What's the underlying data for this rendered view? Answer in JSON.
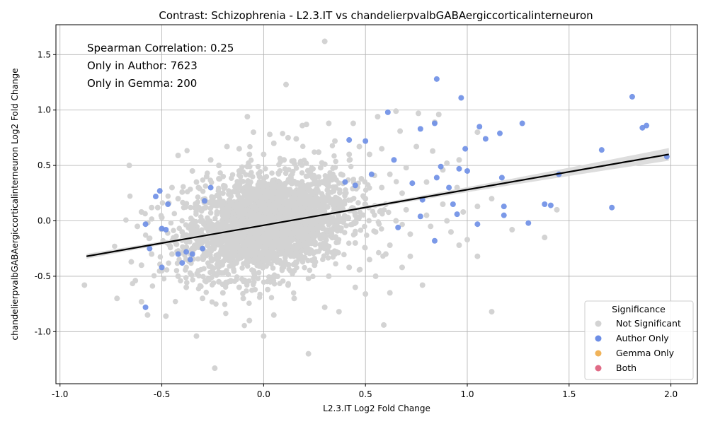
{
  "chart_data": {
    "type": "scatter",
    "title": "Contrast: Schizophrenia - L2.3.IT vs chandelierpvalbGABAergiccorticalinterneuron",
    "xlabel": "L2.3.IT Log2 Fold Change",
    "ylabel": "chandelierpvalbGABAergiccorticalinterneuron Log2 Fold Change",
    "xlim": [
      -1.02,
      2.13
    ],
    "ylim": [
      -1.47,
      1.77
    ],
    "x_ticks": [
      "-1.0",
      "-0.5",
      "0.0",
      "0.5",
      "1.0",
      "1.5",
      "2.0"
    ],
    "x_tick_values": [
      -1.0,
      -0.5,
      0.0,
      0.5,
      1.0,
      1.5,
      2.0
    ],
    "y_ticks": [
      "-1.0",
      "-0.5",
      "0.0",
      "0.5",
      "1.0",
      "1.5"
    ],
    "y_tick_values": [
      -1.0,
      -0.5,
      0.0,
      0.5,
      1.0,
      1.5
    ],
    "grid": true,
    "annotations": [
      "Spearman Correlation: 0.25",
      "Only in Author: 7623",
      "Only in Gemma: 200"
    ],
    "legend": {
      "title": "Significance",
      "placement": "lower-right",
      "entries": [
        {
          "label": "Not Significant",
          "color": "#d3d3d3"
        },
        {
          "label": "Author Only",
          "color": "#6d8ee6"
        },
        {
          "label": "Gemma Only",
          "color": "#f0b35a"
        },
        {
          "label": "Both",
          "color": "#e06b86"
        }
      ]
    },
    "regression_line": {
      "x": [
        -0.87,
        1.99
      ],
      "y": [
        -0.32,
        0.6
      ],
      "color": "#000000"
    },
    "series": [
      {
        "name": "Not Significant",
        "color": "#d3d3d3",
        "points": [
          [
            0.3,
            1.62
          ],
          [
            0.11,
            1.23
          ],
          [
            -0.08,
            0.94
          ],
          [
            0.65,
            0.99
          ],
          [
            0.84,
            0.89
          ],
          [
            0.86,
            0.96
          ],
          [
            0.32,
            0.88
          ],
          [
            0.44,
            0.88
          ],
          [
            0.21,
            0.87
          ],
          [
            0.56,
            0.94
          ],
          [
            0.76,
            0.97
          ],
          [
            0.67,
            0.81
          ],
          [
            -0.05,
            0.8
          ],
          [
            0.03,
            0.78
          ],
          [
            0.12,
            0.75
          ],
          [
            0.16,
            0.74
          ],
          [
            0.19,
            0.86
          ],
          [
            0.05,
            0.7
          ],
          [
            -0.18,
            0.67
          ],
          [
            -0.12,
            0.65
          ],
          [
            0.35,
            0.72
          ],
          [
            0.47,
            0.67
          ],
          [
            0.58,
            0.65
          ],
          [
            0.75,
            0.67
          ],
          [
            0.83,
            0.63
          ],
          [
            0.9,
            0.52
          ],
          [
            -0.42,
            0.59
          ],
          [
            -0.66,
            0.5
          ],
          [
            -0.35,
            0.45
          ],
          [
            -0.26,
            0.55
          ],
          [
            -0.22,
            0.5
          ],
          [
            0.7,
            0.48
          ],
          [
            0.62,
            0.42
          ],
          [
            0.88,
            0.46
          ],
          [
            0.96,
            0.55
          ],
          [
            1.05,
            0.8
          ],
          [
            0.8,
            0.35
          ],
          [
            0.95,
            0.3
          ],
          [
            1.12,
            0.2
          ],
          [
            1.05,
            0.13
          ],
          [
            1.22,
            -0.08
          ],
          [
            1.38,
            -0.15
          ],
          [
            1.44,
            0.1
          ],
          [
            1.0,
            -0.17
          ],
          [
            1.12,
            -0.82
          ],
          [
            0.96,
            -0.22
          ],
          [
            1.05,
            -0.32
          ],
          [
            0.72,
            -0.32
          ],
          [
            0.78,
            -0.58
          ],
          [
            0.68,
            -0.42
          ],
          [
            0.62,
            -0.65
          ],
          [
            0.59,
            -0.94
          ],
          [
            0.5,
            -0.66
          ],
          [
            0.22,
            -1.2
          ],
          [
            -0.07,
            -0.9
          ],
          [
            -0.24,
            -1.33
          ],
          [
            -0.33,
            -1.04
          ],
          [
            0.0,
            -1.04
          ],
          [
            -0.48,
            -0.86
          ],
          [
            -0.57,
            -0.85
          ],
          [
            -0.6,
            -0.73
          ],
          [
            -0.72,
            -0.7
          ],
          [
            -0.88,
            -0.58
          ],
          [
            -0.63,
            -0.54
          ],
          [
            -0.6,
            -0.4
          ],
          [
            -0.65,
            -0.37
          ],
          [
            -0.55,
            -0.3
          ],
          [
            -0.6,
            0.08
          ],
          [
            -0.55,
            0.12
          ],
          [
            -0.62,
            -0.05
          ],
          [
            -0.5,
            0.03
          ],
          [
            -0.45,
            0.3
          ],
          [
            -0.4,
            0.26
          ],
          [
            -0.33,
            0.35
          ],
          [
            -0.28,
            0.4
          ],
          [
            -0.38,
            -0.6
          ],
          [
            -0.3,
            -0.7
          ],
          [
            -0.2,
            -0.65
          ],
          [
            -0.1,
            -0.7
          ],
          [
            0.05,
            -0.85
          ],
          [
            0.15,
            -0.7
          ],
          [
            0.3,
            -0.78
          ],
          [
            0.37,
            -0.82
          ],
          [
            0.45,
            -0.6
          ],
          [
            0.55,
            -0.5
          ],
          [
            0.6,
            -0.3
          ],
          [
            0.52,
            0.6
          ],
          [
            0.42,
            0.6
          ],
          [
            0.27,
            0.62
          ],
          [
            -0.07,
            0.6
          ],
          [
            0.0,
            0.6
          ],
          [
            0.1,
            0.55
          ],
          [
            -0.12,
            0.3
          ],
          [
            -0.2,
            0.25
          ],
          [
            0.0,
            0.35
          ],
          [
            0.1,
            0.25
          ],
          [
            0.2,
            0.3
          ],
          [
            0.3,
            0.2
          ],
          [
            0.4,
            0.25
          ],
          [
            0.5,
            0.2
          ],
          [
            0.6,
            0.15
          ],
          [
            0.7,
            0.1
          ],
          [
            0.8,
            0.05
          ],
          [
            0.9,
            0.0
          ],
          [
            -0.1,
            0.1
          ],
          [
            -0.2,
            0.05
          ],
          [
            -0.3,
            0.0
          ],
          [
            -0.4,
            -0.1
          ],
          [
            -0.35,
            -0.25
          ],
          [
            -0.25,
            -0.35
          ],
          [
            -0.15,
            -0.4
          ],
          [
            -0.05,
            -0.45
          ],
          [
            0.05,
            -0.5
          ],
          [
            0.15,
            -0.45
          ],
          [
            0.25,
            -0.4
          ],
          [
            0.35,
            -0.3
          ],
          [
            0.45,
            -0.2
          ],
          [
            0.55,
            -0.1
          ],
          [
            0.65,
            0.0
          ],
          [
            0.0,
            0.0
          ],
          [
            0.1,
            -0.1
          ],
          [
            0.2,
            -0.15
          ],
          [
            -0.05,
            0.2
          ],
          [
            0.05,
            0.15
          ],
          [
            0.15,
            0.1
          ],
          [
            0.25,
            0.05
          ],
          [
            0.35,
            0.0
          ],
          [
            0.45,
            0.05
          ],
          [
            -0.15,
            -0.1
          ],
          [
            -0.25,
            -0.15
          ],
          [
            -0.05,
            -0.25
          ],
          [
            0.05,
            -0.3
          ],
          [
            0.15,
            -0.25
          ],
          [
            0.25,
            -0.2
          ],
          [
            0.35,
            -0.15
          ],
          [
            -0.45,
            -0.3
          ],
          [
            -0.5,
            -0.45
          ],
          [
            -0.42,
            -0.5
          ],
          [
            -0.32,
            -0.45
          ],
          [
            -0.22,
            -0.55
          ],
          [
            -0.12,
            -0.6
          ],
          [
            0.02,
            -0.62
          ],
          [
            0.12,
            -0.58
          ],
          [
            0.22,
            -0.52
          ],
          [
            0.32,
            -0.5
          ],
          [
            0.42,
            -0.42
          ],
          [
            0.52,
            -0.35
          ],
          [
            0.62,
            -0.22
          ],
          [
            0.72,
            -0.12
          ],
          [
            0.82,
            -0.05
          ],
          [
            0.92,
            -0.1
          ],
          [
            0.48,
            0.38
          ],
          [
            0.38,
            0.42
          ],
          [
            0.28,
            0.48
          ],
          [
            0.18,
            0.52
          ],
          [
            0.08,
            0.45
          ],
          [
            -0.02,
            0.4
          ],
          [
            -0.12,
            0.45
          ],
          [
            -0.22,
            0.38
          ],
          [
            -0.32,
            0.3
          ],
          [
            -0.42,
            0.2
          ],
          [
            -0.52,
            0.12
          ],
          [
            0.58,
            0.3
          ],
          [
            0.68,
            0.25
          ],
          [
            0.78,
            0.2
          ],
          [
            0.88,
            0.15
          ],
          [
            0.98,
            0.08
          ]
        ]
      },
      {
        "name": "Author Only",
        "color": "#6d8ee6",
        "points": [
          [
            0.85,
            1.28
          ],
          [
            0.97,
            1.11
          ],
          [
            1.81,
            1.12
          ],
          [
            0.61,
            0.98
          ],
          [
            0.84,
            0.88
          ],
          [
            1.06,
            0.85
          ],
          [
            1.27,
            0.88
          ],
          [
            1.16,
            0.79
          ],
          [
            0.77,
            0.83
          ],
          [
            1.09,
            0.74
          ],
          [
            0.42,
            0.73
          ],
          [
            0.5,
            0.72
          ],
          [
            0.99,
            0.65
          ],
          [
            1.66,
            0.64
          ],
          [
            1.86,
            0.84
          ],
          [
            1.88,
            0.86
          ],
          [
            1.98,
            0.58
          ],
          [
            0.64,
            0.55
          ],
          [
            0.87,
            0.49
          ],
          [
            0.96,
            0.47
          ],
          [
            1.0,
            0.45
          ],
          [
            1.45,
            0.42
          ],
          [
            0.53,
            0.42
          ],
          [
            1.17,
            0.39
          ],
          [
            0.85,
            0.39
          ],
          [
            0.73,
            0.34
          ],
          [
            0.91,
            0.3
          ],
          [
            -0.26,
            0.3
          ],
          [
            -0.51,
            0.27
          ],
          [
            -0.53,
            0.22
          ],
          [
            0.78,
            0.19
          ],
          [
            -0.29,
            0.18
          ],
          [
            -0.47,
            0.15
          ],
          [
            0.93,
            0.15
          ],
          [
            1.38,
            0.15
          ],
          [
            1.41,
            0.14
          ],
          [
            1.18,
            0.13
          ],
          [
            1.71,
            0.12
          ],
          [
            0.95,
            0.06
          ],
          [
            1.18,
            0.05
          ],
          [
            0.77,
            0.04
          ],
          [
            -0.58,
            -0.03
          ],
          [
            1.05,
            -0.03
          ],
          [
            1.3,
            -0.02
          ],
          [
            -0.5,
            -0.07
          ],
          [
            -0.48,
            -0.08
          ],
          [
            0.66,
            -0.06
          ],
          [
            0.84,
            -0.18
          ],
          [
            -0.56,
            -0.25
          ],
          [
            -0.38,
            -0.28
          ],
          [
            -0.35,
            -0.3
          ],
          [
            -0.5,
            -0.42
          ],
          [
            -0.58,
            -0.78
          ],
          [
            -0.42,
            -0.3
          ],
          [
            -0.3,
            -0.25
          ],
          [
            -0.36,
            -0.35
          ],
          [
            -0.4,
            -0.38
          ],
          [
            0.45,
            0.32
          ],
          [
            0.4,
            0.35
          ]
        ]
      },
      {
        "name": "Gemma Only",
        "color": "#f0b35a",
        "points": []
      },
      {
        "name": "Both",
        "color": "#e06b86",
        "points": []
      }
    ]
  }
}
